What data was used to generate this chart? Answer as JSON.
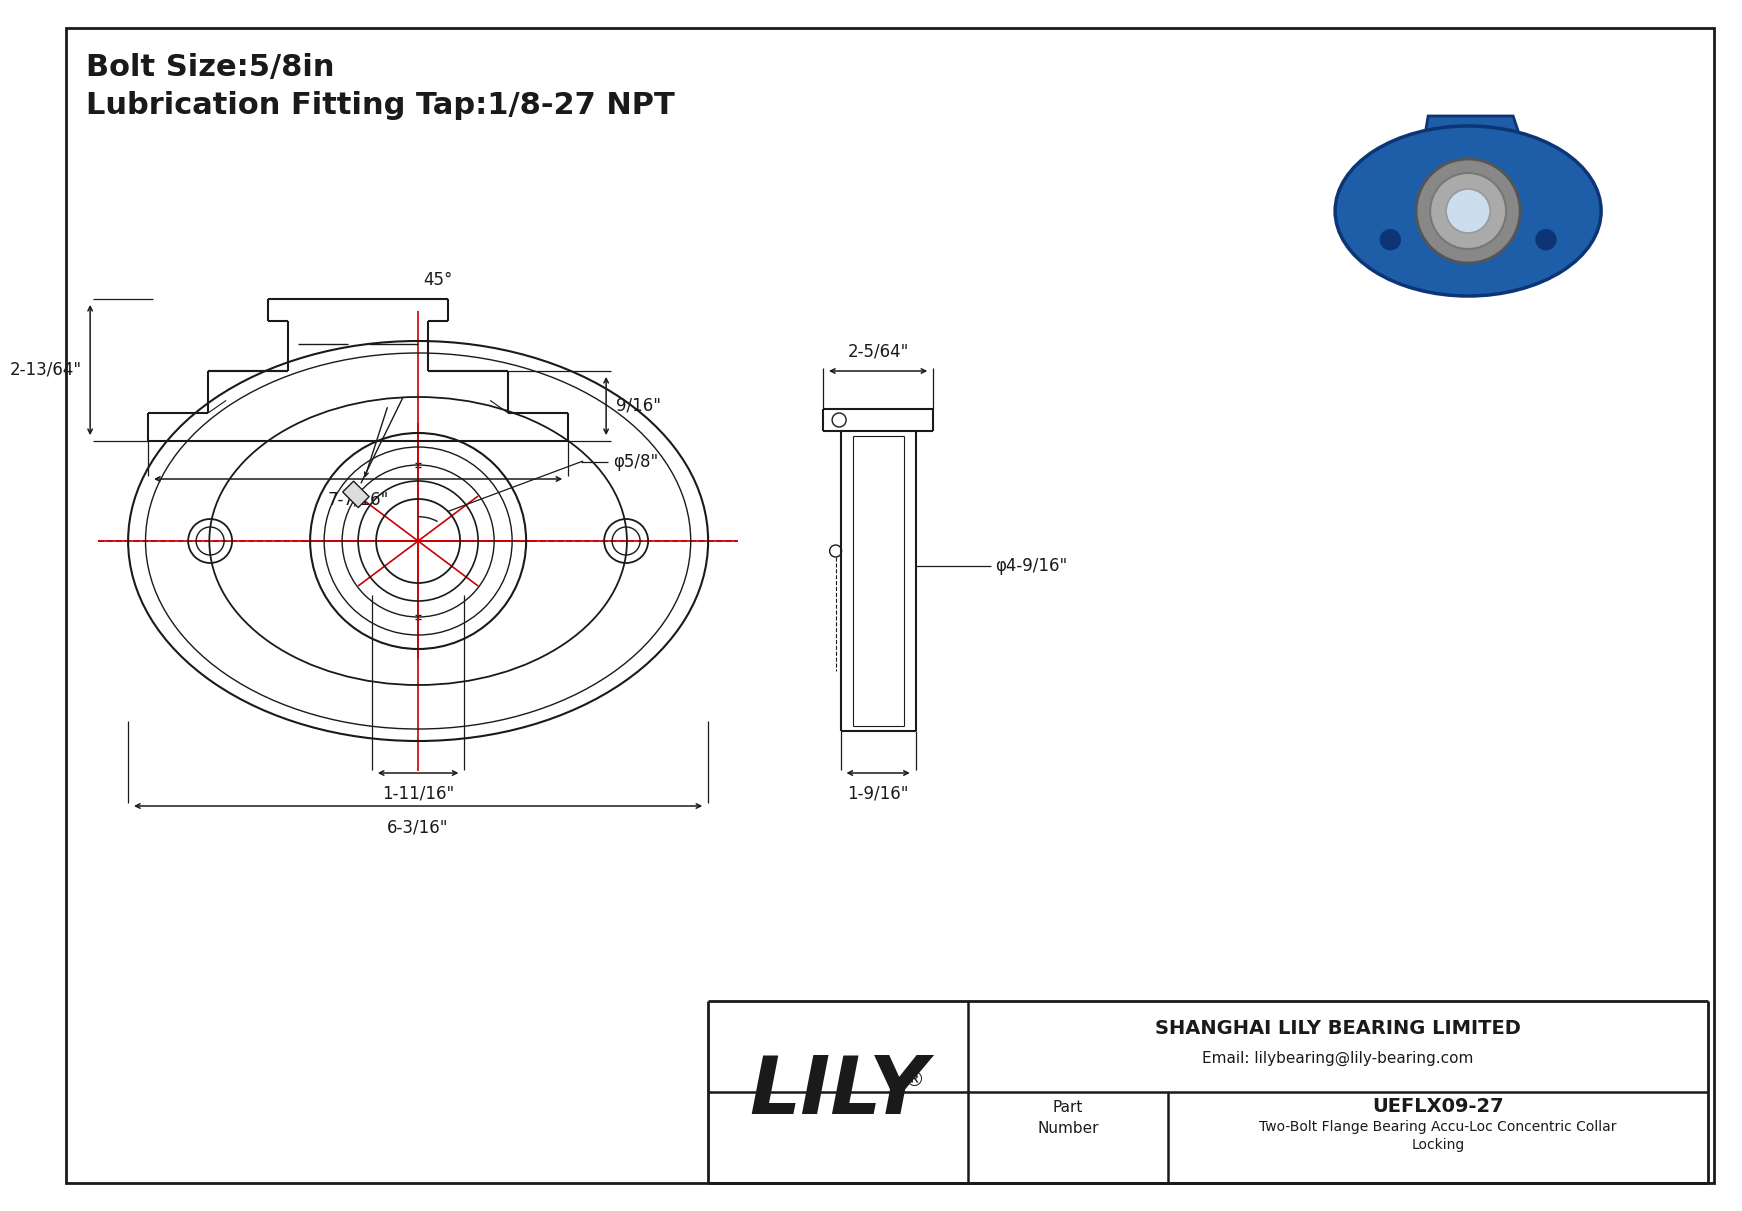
{
  "bg_color": "#ffffff",
  "line_color": "#1a1a1a",
  "red_color": "#cc0000",
  "red_dash": "#dd0000",
  "title_line1": "Bolt Size:5/8in",
  "title_line2": "Lubrication Fitting Tap:1/8-27 NPT",
  "dim_45": "45°",
  "dim_phi_bore": "φ5/8\"",
  "dim_width": "6-3/16\"",
  "dim_inner_width": "1-11/16\"",
  "dim_side_depth": "2-5/64\"",
  "dim_phi_flange": "φ4-9/16\"",
  "dim_side_width": "1-9/16\"",
  "dim_front_height": "2-13/64\"",
  "dim_front_width": "7-7/16\"",
  "dim_front_side": "9/16\"",
  "part_number": "UEFLX09-27",
  "part_desc1": "Two-Bolt Flange Bearing Accu-Loc Concentric Collar",
  "part_desc2": "Locking",
  "company": "SHANGHAI LILY BEARING LIMITED",
  "email": "Email: lilybearing@lily-bearing.com",
  "lily_text": "LILY",
  "reg_mark": "®",
  "part_label": "Part\nNumber"
}
